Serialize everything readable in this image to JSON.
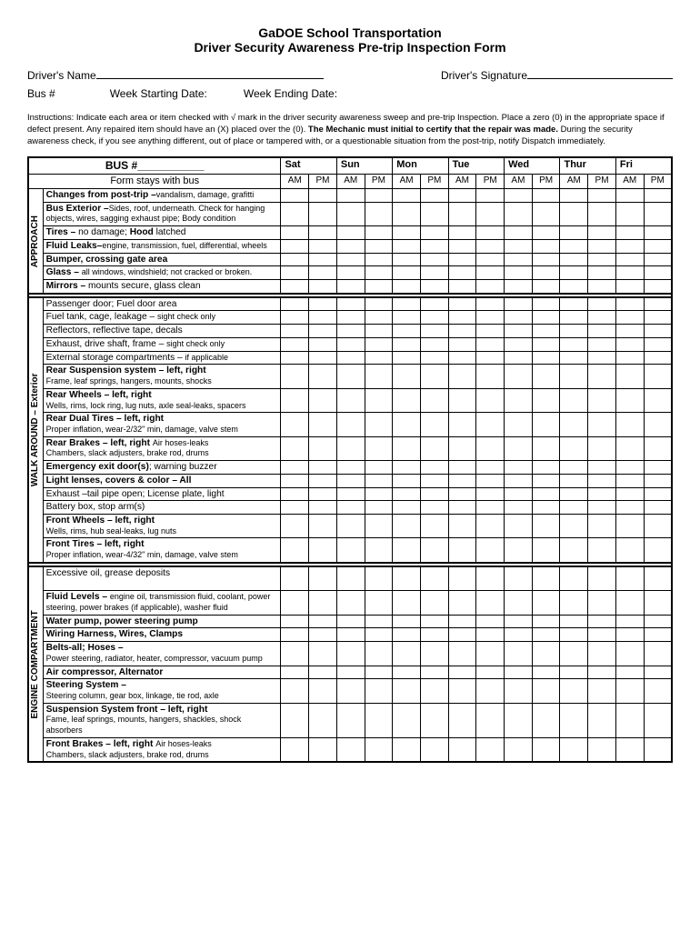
{
  "header": {
    "org": "GaDOE School Transportation",
    "title": "Driver Security Awareness Pre-trip Inspection Form"
  },
  "fields": {
    "drivers_name_label": "Driver's Name",
    "drivers_signature_label": "Driver's Signature",
    "bus_num_label": "Bus #",
    "week_start_label": "Week Starting Date:",
    "week_end_label": "Week Ending Date:"
  },
  "instructions": {
    "pre": "Instructions:  Indicate each area or item checked with √ mark in the driver security awareness sweep and pre-trip Inspection.  Place a zero (0) in the appropriate space if defect present.  Any repaired item should have an (X) placed over the (0).  ",
    "bold": "The Mechanic must initial to certify that the repair was made.",
    "post": "  During the security  awareness check, if you see anything different, out of place or tampered with, or a questionable situation from the post-trip, notify Dispatch immediately."
  },
  "table_head": {
    "bus_label": "BUS #___________",
    "form_stays": "Form stays with bus",
    "days": [
      "Sat",
      "Sun",
      "Mon",
      "Tue",
      "Wed",
      "Thur",
      "Fri"
    ],
    "am": "AM",
    "pm": "PM"
  },
  "sections": [
    {
      "label": "APPROACH",
      "rows": [
        {
          "html": "<span class='b'>Changes from post-trip –</span><span class='sm'>vandalism, damage, grafitti</span>"
        },
        {
          "html": "<span class='b'>Bus Exterior –</span><span class='sm'>Sides, roof, underneath. Check for hanging objects, wires, sagging exhaust pipe;  Body condition</span>"
        },
        {
          "html": "<span class='b'>Tires –</span> no damage;  <span class='b'>Hood</span> latched"
        },
        {
          "html": "<span class='b'>Fluid Leaks–</span><span class='sm'>engine, transmission, fuel, differential, wheels</span>"
        },
        {
          "html": "<span class='b'>Bumper, crossing gate area</span>"
        },
        {
          "html": "<span class='b'>Glass –</span> <span class='sm'>all windows, windshield;  not cracked or broken.</span>"
        },
        {
          "html": "<span class='b'>Mirrors –</span> mounts secure, glass clean"
        }
      ]
    },
    {
      "label": "WALK AROUND – Exterior",
      "rows": [
        {
          "html": "Passenger door; Fuel door area"
        },
        {
          "html": "Fuel tank, cage, leakage – <span class='sm'>sight check only</span>"
        },
        {
          "html": "Reflectors, reflective tape, decals"
        },
        {
          "html": "Exhaust, drive shaft, frame – <span class='sm'>sight check only</span>"
        },
        {
          "html": "External storage compartments – <span class='sm'>if applicable</span>"
        },
        {
          "html": "<span class='b'>Rear Suspension system – left, right</span><br><span class='sm'>Frame, leaf springs, hangers, mounts, shocks</span>"
        },
        {
          "html": "<span class='b'>Rear Wheels – left, right</span><br><span class='sm'>Wells, rims, lock ring, lug nuts, axle seal-leaks, spacers</span>"
        },
        {
          "html": "<span class='b'>Rear Dual Tires – left, right</span><br><span class='sm'>Proper inflation, wear-2/32\" min, damage, valve stem</span>"
        },
        {
          "html": "<span class='b'>Rear Brakes – left, right</span>  <span class='sm'>Air hoses-leaks</span><br><span class='sm'>Chambers, slack adjusters, brake rod, drums</span>"
        },
        {
          "html": "<span class='b'>Emergency exit door(s)</span>; warning buzzer"
        },
        {
          "html": "<span class='b'>Light lenses, covers & color – All</span>"
        },
        {
          "html": "Exhaust –tail pipe open; License plate, light"
        },
        {
          "html": "Battery box, stop arm(s)"
        },
        {
          "html": "<span class='b'>Front Wheels – left, right</span><br><span class='sm'>Wells, rims, hub seal-leaks,  lug nuts</span>"
        },
        {
          "html": "<span class='b'>Front Tires – left, right</span><br><span class='sm'>Proper inflation,  wear-4/32\" min, damage,  valve stem</span>"
        }
      ]
    },
    {
      "label": "ENGINE  COMPARTMENT",
      "rows": [
        {
          "html": "Excessive oil, grease deposits<br>&nbsp;"
        },
        {
          "html": "<span class='b'>Fluid Levels –</span> <span class='sm'>engine oil, transmission fluid, coolant, power steering, power brakes (if applicable), washer fluid</span>"
        },
        {
          "html": "<span class='b'>Water pump, power steering pump</span>"
        },
        {
          "html": "<span class='b'>Wiring Harness, Wires, Clamps</span>"
        },
        {
          "html": "<span class='b'>Belts-all;  Hoses –</span><br><span class='sm'>Power steering, radiator, heater, compressor, vacuum pump</span>"
        },
        {
          "html": "<span class='b'>Air compressor, Alternator</span>"
        },
        {
          "html": "<span class='b'>Steering System –</span><br><span class='sm'>Steering column, gear box, linkage, tie rod, axle</span>"
        },
        {
          "html": "<span class='b'>Suspension System front – left, right</span><br><span class='sm'>Fame, leaf springs, mounts, hangers, shackles, shock absorbers</span>"
        },
        {
          "html": "<span class='b'>Front Brakes – left, right</span>   <span class='sm'>Air hoses-leaks</span><br><span class='sm'>Chambers, slack adjusters, brake rod, drums</span>"
        }
      ]
    }
  ]
}
